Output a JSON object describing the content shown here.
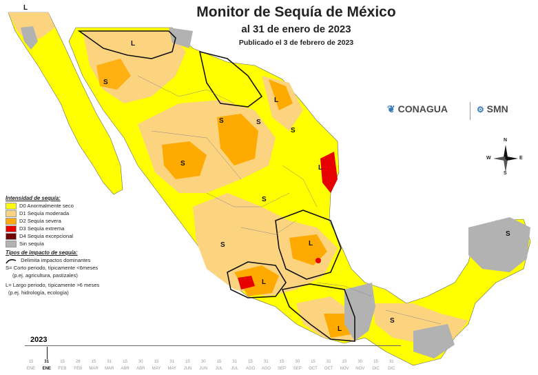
{
  "title": "Monitor de Sequía de México",
  "subtitle": "al 31 de enero de 2023",
  "published": "Publicado el 3 de febrero de 2023",
  "logos": {
    "conagua": "CONAGUA",
    "smn": "SMN"
  },
  "compass": {
    "n": "N",
    "s": "S",
    "e": "E",
    "w": "W"
  },
  "legend": {
    "intensity_title": "Intensidad de sequía:",
    "intensity_items": [
      {
        "label": "D0 Anormalmente seco",
        "color": "#ffff00"
      },
      {
        "label": "D1 Sequía moderada",
        "color": "#fcd37f"
      },
      {
        "label": "D2 Sequía severa",
        "color": "#ffaa00"
      },
      {
        "label": "D3 Sequía extrema",
        "color": "#e60000"
      },
      {
        "label": "D4 Sequía excepcional",
        "color": "#730000"
      },
      {
        "label": "Sin sequía",
        "color": "#b2b2b2"
      }
    ],
    "impact_title": "Tipos de impacto de sequía:",
    "impact_line": "Delimita impactos dominantes",
    "impact_short": "S= Corto periodo, típicamente <6meses",
    "impact_short_ex": "(p.ej. agricultura, pastizales)",
    "impact_long": "L= Largo periodo, típicamente >6 meses",
    "impact_long_ex": "(p.ej. hidrología, ecología)"
  },
  "timeline": {
    "year": "2023",
    "months": [
      "ENE",
      "FEB",
      "MAR",
      "ABR",
      "MAY",
      "JUN",
      "JUL",
      "AGO",
      "SEP",
      "OCT",
      "NOV",
      "DIC"
    ],
    "ticks": [
      "15",
      "31",
      "15",
      "28",
      "15",
      "31",
      "15",
      "30",
      "15",
      "31",
      "15",
      "30",
      "15",
      "31",
      "15",
      "31",
      "15",
      "30",
      "15",
      "31",
      "15",
      "30",
      "15",
      "31"
    ],
    "active_index": 1
  },
  "map_labels": [
    "L",
    "L",
    "S",
    "S",
    "S",
    "L",
    "S",
    "S",
    "S",
    "S",
    "L",
    "L",
    "L",
    "S",
    "S",
    "L"
  ],
  "colors": {
    "d0": "#ffff00",
    "d1": "#fcd37f",
    "d2": "#ffaa00",
    "d3": "#e60000",
    "none": "#b2b2b2"
  }
}
